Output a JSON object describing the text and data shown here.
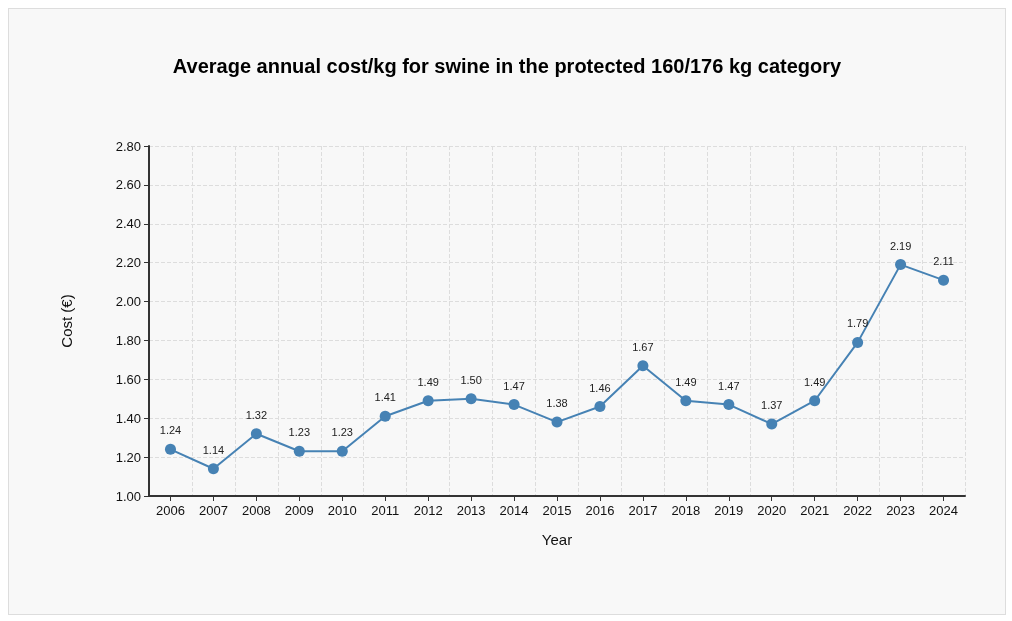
{
  "chart_data": {
    "type": "line",
    "title": "Average annual cost/kg for swine in the protected 160/176 kg category",
    "xlabel": "Year",
    "ylabel": "Cost (€)",
    "categories": [
      "2006",
      "2007",
      "2008",
      "2009",
      "2010",
      "2011",
      "2012",
      "2013",
      "2014",
      "2015",
      "2016",
      "2017",
      "2018",
      "2019",
      "2020",
      "2021",
      "2022",
      "2023",
      "2024"
    ],
    "series": [
      {
        "color": "#4682b4",
        "values": [
          1.24,
          1.14,
          1.32,
          1.23,
          1.23,
          1.41,
          1.49,
          1.5,
          1.47,
          1.38,
          1.46,
          1.67,
          1.49,
          1.47,
          1.37,
          1.49,
          1.79,
          2.19,
          2.11
        ],
        "value_labels": [
          "1.24",
          "1.14",
          "1.32",
          "1.23",
          "1.23",
          "1.41",
          "1.49",
          "1.50",
          "1.47",
          "1.38",
          "1.46",
          "1.67",
          "1.49",
          "1.47",
          "1.37",
          "1.49",
          "1.79",
          "2.19",
          "2.11"
        ]
      }
    ],
    "ylim": [
      1,
      2.8
    ],
    "yticks": [
      {
        "value": 1,
        "label": "1.00"
      },
      {
        "value": 1.2,
        "label": "1.20"
      },
      {
        "value": 1.4,
        "label": "1.40"
      },
      {
        "value": 1.6,
        "label": "1.60"
      },
      {
        "value": 1.8,
        "label": "1.80"
      },
      {
        "value": 2,
        "label": "2.00"
      },
      {
        "value": 2.2,
        "label": "2.20"
      },
      {
        "value": 2.4,
        "label": "2.40"
      },
      {
        "value": 2.6,
        "label": "2.60"
      },
      {
        "value": 2.8,
        "label": "2.80"
      }
    ],
    "grid": true,
    "marker": "circle",
    "line_style": "solid"
  }
}
